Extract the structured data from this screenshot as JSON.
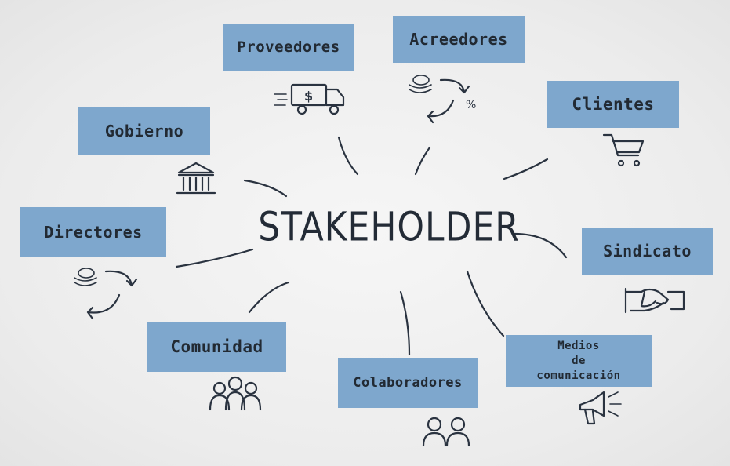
{
  "center": {
    "title": "STAKEHOLDER"
  },
  "nodes": {
    "proveedores": "Proveedores",
    "acreedores": "Acreedores",
    "clientes": "Clientes",
    "gobierno": "Gobierno",
    "directores": "Directores",
    "sindicato": "Sindicato",
    "comunidad": "Comunidad",
    "colaboradores": "Colaboradores",
    "medios": "Medios\nde\ncomunicación"
  },
  "icons": {
    "proveedores": "truck-icon",
    "acreedores": "money-cycle-icon",
    "clientes": "shopping-cart-icon",
    "gobierno": "government-building-icon",
    "directores": "money-cycle-icon",
    "sindicato": "handshake-icon",
    "comunidad": "group-icon",
    "colaboradores": "pair-people-icon",
    "medios": "megaphone-icon",
    "truck_label": "$",
    "percent_label": "%"
  },
  "colors": {
    "box": "#7ea7cd",
    "ink": "#2a3340"
  }
}
